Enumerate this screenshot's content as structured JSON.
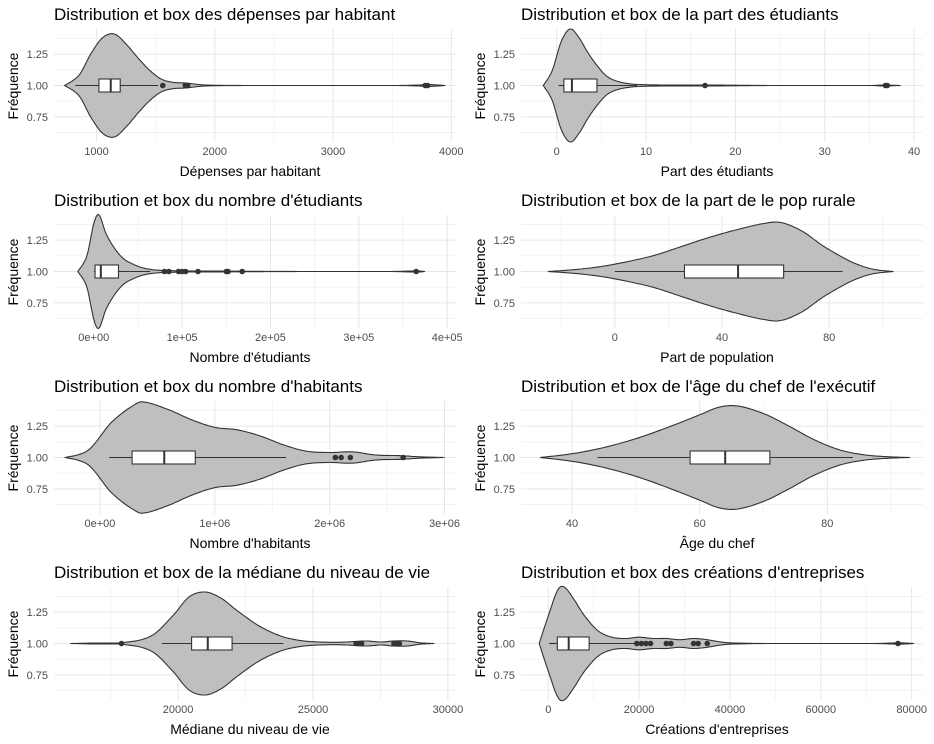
{
  "chart_data": [
    {
      "type": "violin",
      "title": "Distribution et box des dépenses par habitant",
      "xlabel": "Dépenses par habitant",
      "ylabel": "Fréquence",
      "xlim": [
        640,
        4040
      ],
      "ylim": [
        0.55,
        1.45
      ],
      "xticks": [
        1000,
        2000,
        3000,
        4000
      ],
      "xtick_labels": [
        "1000",
        "2000",
        "3000",
        "4000"
      ],
      "yticks": [
        0.75,
        1.0,
        1.25
      ],
      "ytick_labels": [
        "0.75",
        "1.00",
        "1.25"
      ],
      "violin": {
        "x": [
          730,
          850,
          950,
          1050,
          1150,
          1250,
          1350,
          1450,
          1550,
          1650,
          1750,
          1900,
          2100,
          2500,
          3000,
          3500,
          3700,
          3800,
          3900,
          3950
        ],
        "halfwidth": [
          0.0,
          0.08,
          0.25,
          0.38,
          0.41,
          0.33,
          0.22,
          0.12,
          0.05,
          0.025,
          0.02,
          0.005,
          0.001,
          0.0,
          0.0,
          0.0,
          0.003,
          0.008,
          0.003,
          0.0
        ]
      },
      "box": {
        "whisker_low": 820,
        "q1": 1020,
        "median": 1120,
        "q3": 1200,
        "whisker_high": 1520
      },
      "outliers": [
        1560,
        1750,
        1770,
        3780,
        3800
      ]
    },
    {
      "type": "violin",
      "title": "Distribution et box de la part des étudiants",
      "xlabel": "Part des étudiants",
      "ylabel": "Fréquence",
      "xlim": [
        -4,
        41
      ],
      "ylim": [
        0.55,
        1.45
      ],
      "xticks": [
        0,
        10,
        20,
        30,
        40
      ],
      "xtick_labels": [
        "0",
        "10",
        "20",
        "30",
        "40"
      ],
      "yticks": [
        0.75,
        1.0,
        1.25
      ],
      "ytick_labels": [
        "0.75",
        "1.00",
        "1.25"
      ],
      "violin": {
        "x": [
          -1.5,
          -0.5,
          0.5,
          1.5,
          2.5,
          3.5,
          4.5,
          5.5,
          6.5,
          8,
          10,
          14,
          17,
          20,
          25,
          30,
          35,
          36.5,
          37.5,
          38.5
        ],
        "halfwidth": [
          0.0,
          0.12,
          0.35,
          0.45,
          0.38,
          0.26,
          0.16,
          0.08,
          0.04,
          0.015,
          0.006,
          0.003,
          0.004,
          0.002,
          0.0,
          0.0,
          0.0,
          0.004,
          0.002,
          0.0
        ]
      },
      "box": {
        "whisker_low": 0.2,
        "q1": 0.8,
        "median": 1.7,
        "q3": 4.5,
        "whisker_high": 9.0
      },
      "outliers": [
        16.6,
        36.8,
        37.0
      ]
    },
    {
      "type": "violin",
      "title": "Distribution et box du nombre d'étudiants",
      "xlabel": "Nombre d'étudiants",
      "ylabel": "Fréquence",
      "xlim": [
        -45000,
        410000
      ],
      "ylim": [
        0.55,
        1.45
      ],
      "xticks": [
        0,
        100000,
        200000,
        300000,
        400000
      ],
      "xtick_labels": [
        "0e+00",
        "1e+05",
        "2e+05",
        "3e+05",
        "4e+05"
      ],
      "yticks": [
        0.75,
        1.0,
        1.25
      ],
      "ytick_labels": [
        "0.75",
        "1.00",
        "1.25"
      ],
      "violin": {
        "x": [
          -18000,
          -8000,
          0,
          6000,
          14000,
          24000,
          34000,
          44000,
          55000,
          70000,
          90000,
          110000,
          140000,
          170000,
          200000,
          260000,
          330000,
          355000,
          365000,
          375000
        ],
        "halfwidth": [
          0.0,
          0.12,
          0.38,
          0.45,
          0.3,
          0.18,
          0.1,
          0.06,
          0.03,
          0.012,
          0.006,
          0.004,
          0.003,
          0.002,
          0.001,
          0.0,
          0.0,
          0.003,
          0.005,
          0.0
        ]
      },
      "box": {
        "whisker_low": 0,
        "q1": 1500,
        "median": 8000,
        "q3": 28000,
        "whisker_high": 64000
      },
      "outliers": [
        80000,
        85000,
        96000,
        100000,
        104000,
        118000,
        150000,
        152000,
        168000,
        365000
      ]
    },
    {
      "type": "violin",
      "title": "Distribution et box de la part de le pop rurale",
      "xlabel": "Part de population",
      "ylabel": "Fréquence",
      "xlim": [
        -35,
        115
      ],
      "ylim": [
        0.55,
        1.45
      ],
      "xticks": [
        0,
        40,
        80
      ],
      "xtick_labels": [
        "0",
        "40",
        "80"
      ],
      "yticks": [
        0.75,
        1.0,
        1.25
      ],
      "ytick_labels": [
        "0.75",
        "1.00",
        "1.25"
      ],
      "violin": {
        "x": [
          -25,
          -15,
          -5,
          5,
          15,
          25,
          35,
          45,
          55,
          62,
          70,
          78,
          88,
          96,
          104
        ],
        "halfwidth": [
          0.0,
          0.015,
          0.04,
          0.08,
          0.13,
          0.2,
          0.27,
          0.33,
          0.38,
          0.39,
          0.32,
          0.2,
          0.08,
          0.02,
          0.0
        ]
      },
      "box": {
        "whisker_low": 0,
        "q1": 26,
        "median": 46,
        "q3": 63,
        "whisker_high": 85
      },
      "outliers": []
    },
    {
      "type": "violin",
      "title": "Distribution et box du nombre d'habitants",
      "xlabel": "Nombre d'habitants",
      "ylabel": "Fréquence",
      "xlim": [
        -400000,
        3100000
      ],
      "ylim": [
        0.55,
        1.45
      ],
      "xticks": [
        0,
        1000000,
        2000000,
        3000000
      ],
      "xtick_labels": [
        "0e+00",
        "1e+06",
        "2e+06",
        "3e+06"
      ],
      "violin": {
        "x": [
          -300000,
          -100000,
          100000,
          300000,
          400000,
          600000,
          800000,
          1000000,
          1200000,
          1400000,
          1600000,
          1800000,
          2000000,
          2200000,
          2400000,
          2600000,
          2800000,
          3000000
        ],
        "halfwidth": [
          0.0,
          0.06,
          0.28,
          0.42,
          0.44,
          0.38,
          0.3,
          0.24,
          0.22,
          0.17,
          0.1,
          0.05,
          0.04,
          0.045,
          0.02,
          0.015,
          0.005,
          0.0
        ]
      },
      "yticks": [
        0.75,
        1.0,
        1.25
      ],
      "ytick_labels": [
        "0.75",
        "1.00",
        "1.25"
      ],
      "box": {
        "whisker_low": 80000,
        "q1": 280000,
        "median": 560000,
        "q3": 830000,
        "whisker_high": 1620000
      },
      "outliers": [
        2050000,
        2100000,
        2180000,
        2640000
      ]
    },
    {
      "type": "violin",
      "title": "Distribution et box de l'âge du chef de l'exécutif",
      "xlabel": "Âge du chef",
      "ylabel": "Fréquence",
      "xlim": [
        32,
        95
      ],
      "ylim": [
        0.55,
        1.45
      ],
      "xticks": [
        40,
        60,
        80
      ],
      "xtick_labels": [
        "40",
        "60",
        "80"
      ],
      "yticks": [
        0.75,
        1.0,
        1.25
      ],
      "ytick_labels": [
        "0.75",
        "1.00",
        "1.25"
      ],
      "violin": {
        "x": [
          35,
          40,
          45,
          50,
          55,
          60,
          63,
          66,
          70,
          74,
          78,
          82,
          86,
          90,
          93
        ],
        "halfwidth": [
          0.0,
          0.03,
          0.08,
          0.15,
          0.24,
          0.34,
          0.4,
          0.41,
          0.35,
          0.25,
          0.14,
          0.06,
          0.02,
          0.005,
          0.0
        ]
      },
      "box": {
        "whisker_low": 44,
        "q1": 58.5,
        "median": 64,
        "q3": 71,
        "whisker_high": 84
      },
      "outliers": []
    },
    {
      "type": "violin",
      "title": "Distribution et box de la médiane du niveau de vie",
      "xlabel": "Médiane du niveau de vie",
      "ylabel": "Fréquence",
      "xlim": [
        15400,
        30300
      ],
      "ylim": [
        0.55,
        1.45
      ],
      "xticks": [
        20000,
        25000,
        30000
      ],
      "xtick_labels": [
        "20000",
        "25000",
        "30000"
      ],
      "yticks": [
        0.75,
        1.0,
        1.25
      ],
      "ytick_labels": [
        "0.75",
        "1.00",
        "1.25"
      ],
      "violin": {
        "x": [
          16000,
          17000,
          18000,
          19000,
          19800,
          20400,
          21000,
          21600,
          22200,
          23000,
          23800,
          24500,
          25200,
          26000,
          26500,
          27000,
          27500,
          28000,
          28500,
          29000,
          29500
        ],
        "halfwidth": [
          0.0,
          0.004,
          0.008,
          0.06,
          0.22,
          0.37,
          0.41,
          0.36,
          0.26,
          0.14,
          0.06,
          0.025,
          0.012,
          0.01,
          0.015,
          0.02,
          0.012,
          0.02,
          0.02,
          0.005,
          0.0
        ]
      },
      "box": {
        "whisker_low": 19400,
        "q1": 20500,
        "median": 21100,
        "q3": 22000,
        "whisker_high": 23900
      },
      "outliers": [
        17900,
        26600,
        26700,
        26800,
        28000,
        28100,
        28200
      ]
    },
    {
      "type": "violin",
      "title": "Distribution et box des créations d'entreprises",
      "xlabel": "Créations d'entreprises",
      "ylabel": "Fréquence",
      "xlim": [
        -6000,
        82500
      ],
      "ylim": [
        0.55,
        1.45
      ],
      "xticks": [
        0,
        20000,
        40000,
        60000,
        80000
      ],
      "xtick_labels": [
        "0",
        "20000",
        "40000",
        "60000",
        "80000"
      ],
      "yticks": [
        0.75,
        1.0,
        1.25
      ],
      "ytick_labels": [
        "0.75",
        "1.00",
        "1.25"
      ],
      "violin": {
        "x": [
          -2000,
          0,
          2000,
          3500,
          5500,
          8000,
          11000,
          14000,
          17000,
          20000,
          23000,
          26000,
          29000,
          32000,
          35000,
          38000,
          41000,
          50000,
          70000,
          75000,
          77000,
          79000,
          80500
        ],
        "halfwidth": [
          0.0,
          0.22,
          0.42,
          0.45,
          0.36,
          0.22,
          0.1,
          0.05,
          0.04,
          0.05,
          0.04,
          0.04,
          0.03,
          0.04,
          0.03,
          0.012,
          0.004,
          0.0,
          0.0,
          0.003,
          0.006,
          0.003,
          0.0
        ]
      },
      "box": {
        "whisker_low": 200,
        "q1": 2000,
        "median": 4500,
        "q3": 9000,
        "whisker_high": 19000
      },
      "outliers": [
        19500,
        20500,
        21500,
        22500,
        26000,
        27000,
        32000,
        33000,
        35000,
        77000
      ]
    }
  ]
}
